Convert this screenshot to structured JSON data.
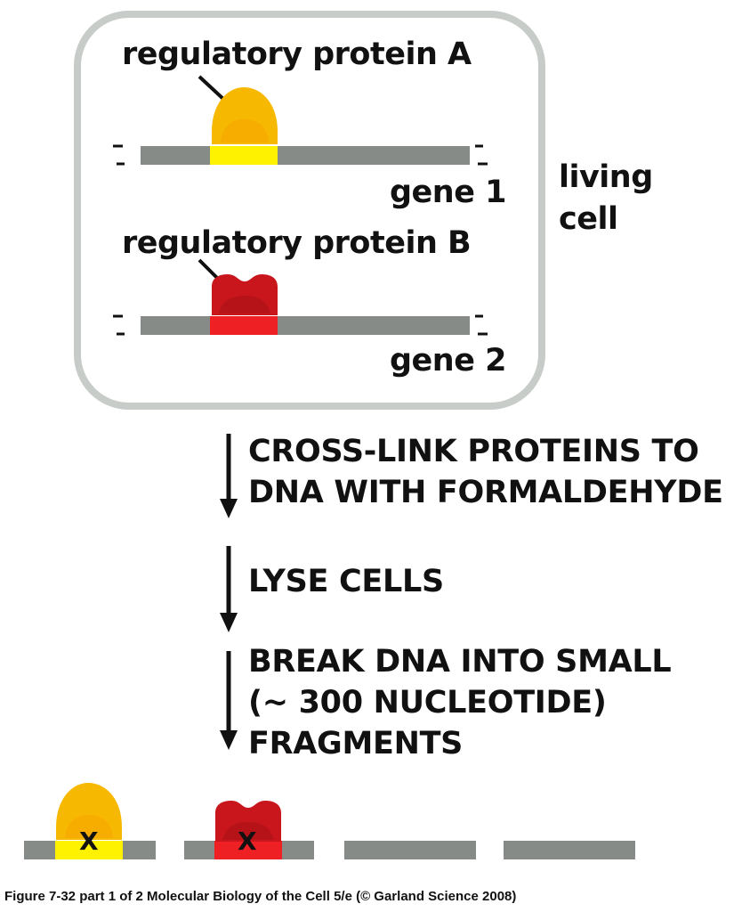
{
  "cell": {
    "label": "living\ncell",
    "protein_a_label": "regulatory protein A",
    "protein_b_label": "regulatory protein B",
    "gene1_label": "gene 1",
    "gene2_label": "gene 2"
  },
  "steps": [
    {
      "text": "CROSS-LINK PROTEINS TO\nDNA WITH FORMALDEHYDE"
    },
    {
      "text": "LYSE CELLS"
    },
    {
      "text": "BREAK DNA INTO SMALL\n(~ 300 NUCLEOTIDE)\nFRAGMENTS"
    }
  ],
  "fragments": {
    "crosslink_mark": "X"
  },
  "colors": {
    "dna": "#868b88",
    "cell_border": "#c7ccc9",
    "protein_a": "#f6b800",
    "protein_a_site": "#fff200",
    "protein_b": "#c8161c",
    "protein_b_site": "#ee2024"
  },
  "caption": "Figure 7-32 part 1 of 2  Molecular Biology of the Cell 5/e (© Garland Science 2008)"
}
